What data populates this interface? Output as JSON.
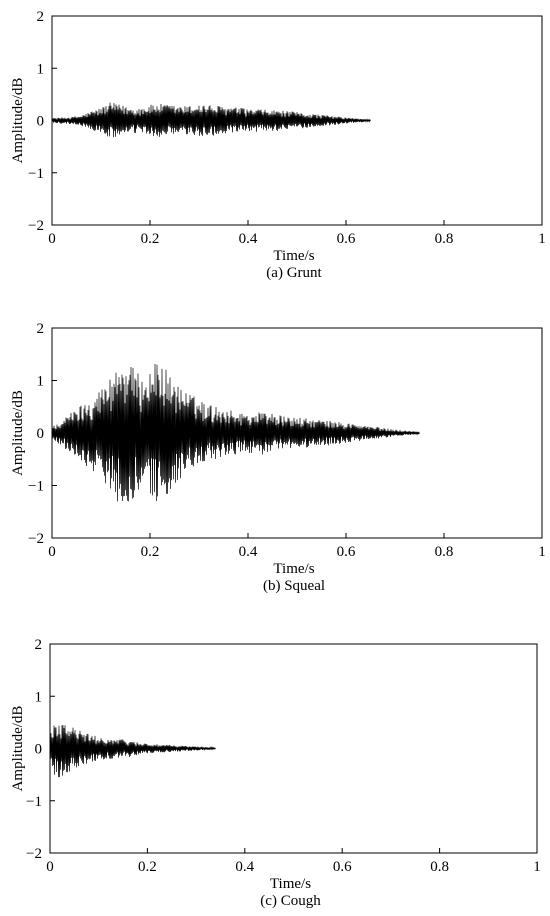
{
  "colors": {
    "waveform": "#000000",
    "axes": "#000000",
    "background": "#ffffff"
  },
  "chart_data": [
    {
      "type": "line",
      "title": "(a) Grunt",
      "xlabel": "Time/s",
      "ylabel": "Amplitude/dB",
      "xlim": [
        0,
        1
      ],
      "ylim": [
        -2,
        2
      ],
      "xticks": [
        0,
        0.2,
        0.4,
        0.6,
        0.8,
        1
      ],
      "xtick_labels": [
        "0",
        "0.2",
        "0.4",
        "0.6",
        "0.8",
        "1"
      ],
      "yticks": [
        2,
        1,
        0,
        -1,
        -2
      ],
      "ytick_labels": [
        "2",
        "1",
        "0",
        "−1",
        "−2"
      ],
      "grid": false,
      "series": [
        {
          "x": [
            0,
            0.02,
            0.04,
            0.06,
            0.08,
            0.1,
            0.12,
            0.14,
            0.16,
            0.18,
            0.2,
            0.22,
            0.24,
            0.26,
            0.28,
            0.3,
            0.32,
            0.34,
            0.36,
            0.38,
            0.4,
            0.42,
            0.44,
            0.46,
            0.48,
            0.5,
            0.52,
            0.54,
            0.56,
            0.58,
            0.6,
            0.62,
            0.65
          ],
          "envelope": [
            0.05,
            0.06,
            0.07,
            0.1,
            0.18,
            0.25,
            0.35,
            0.3,
            0.25,
            0.25,
            0.3,
            0.32,
            0.3,
            0.28,
            0.28,
            0.32,
            0.3,
            0.28,
            0.26,
            0.25,
            0.22,
            0.22,
            0.2,
            0.2,
            0.18,
            0.16,
            0.14,
            0.12,
            0.1,
            0.08,
            0.06,
            0.04,
            0.02
          ]
        }
      ]
    },
    {
      "type": "line",
      "title": "(b) Squeal",
      "xlabel": "Time/s",
      "ylabel": "Amplitude/dB",
      "xlim": [
        0,
        1
      ],
      "ylim": [
        -2,
        2
      ],
      "xticks": [
        0,
        0.2,
        0.4,
        0.6,
        0.8,
        1
      ],
      "xtick_labels": [
        "0",
        "0.2",
        "0.4",
        "0.6",
        "0.8",
        "1"
      ],
      "yticks": [
        2,
        1,
        0,
        -1,
        -2
      ],
      "ytick_labels": [
        "2",
        "1",
        "0",
        "−1",
        "−2"
      ],
      "grid": false,
      "series": [
        {
          "x": [
            0,
            0.02,
            0.04,
            0.06,
            0.08,
            0.1,
            0.12,
            0.14,
            0.16,
            0.18,
            0.2,
            0.22,
            0.24,
            0.26,
            0.28,
            0.3,
            0.32,
            0.34,
            0.36,
            0.38,
            0.4,
            0.42,
            0.44,
            0.46,
            0.48,
            0.5,
            0.52,
            0.54,
            0.56,
            0.58,
            0.6,
            0.62,
            0.64,
            0.66,
            0.68,
            0.7,
            0.72,
            0.75
          ],
          "envelope": [
            0.12,
            0.25,
            0.4,
            0.55,
            0.7,
            0.85,
            1.1,
            1.4,
            1.3,
            1.1,
            1.2,
            1.45,
            1.1,
            0.9,
            0.75,
            0.65,
            0.55,
            0.5,
            0.45,
            0.4,
            0.38,
            0.4,
            0.42,
            0.35,
            0.3,
            0.3,
            0.28,
            0.26,
            0.24,
            0.22,
            0.2,
            0.17,
            0.14,
            0.12,
            0.09,
            0.07,
            0.05,
            0.02
          ]
        }
      ]
    },
    {
      "type": "line",
      "title": "(c) Cough",
      "xlabel": "Time/s",
      "ylabel": "Amplitude/dB",
      "xlim": [
        0,
        1
      ],
      "ylim": [
        -2,
        2
      ],
      "xticks": [
        0,
        0.2,
        0.4,
        0.6,
        0.8,
        1
      ],
      "xtick_labels": [
        "0",
        "0.2",
        "0.4",
        "0.6",
        "0.8",
        "1"
      ],
      "yticks": [
        2,
        1,
        0,
        -1,
        -2
      ],
      "ytick_labels": [
        "2",
        "1",
        "0",
        "−1",
        "−2"
      ],
      "grid": false,
      "series": [
        {
          "x": [
            0,
            0.01,
            0.02,
            0.03,
            0.04,
            0.06,
            0.08,
            0.1,
            0.12,
            0.14,
            0.16,
            0.18,
            0.2,
            0.22,
            0.24,
            0.26,
            0.28,
            0.3,
            0.32,
            0.34
          ],
          "envelope": [
            0.3,
            0.55,
            0.55,
            0.5,
            0.45,
            0.35,
            0.28,
            0.22,
            0.2,
            0.18,
            0.17,
            0.12,
            0.1,
            0.08,
            0.07,
            0.06,
            0.05,
            0.04,
            0.03,
            0.02
          ]
        }
      ]
    }
  ]
}
